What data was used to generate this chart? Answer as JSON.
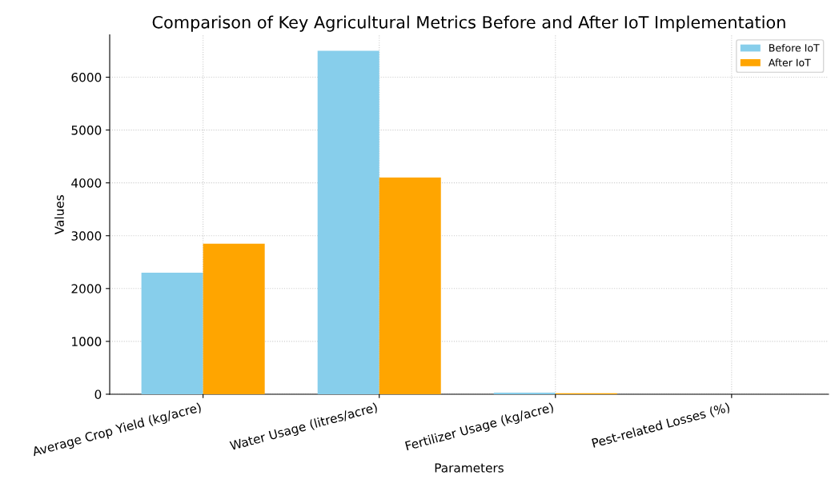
{
  "chart_data": {
    "type": "bar",
    "title": "Comparison of Key Agricultural Metrics Before and After IoT Implementation",
    "xlabel": "Parameters",
    "ylabel": "Values",
    "categories": [
      "Average Crop Yield (kg/acre)",
      "Water Usage (litres/acre)",
      "Fertilizer Usage (kg/acre)",
      "Pest-related Losses (%)"
    ],
    "series": [
      {
        "name": "Before IoT",
        "color": "#87ceeb",
        "values": [
          2300,
          6500,
          30,
          null
        ]
      },
      {
        "name": "After IoT",
        "color": "#ffa500",
        "values": [
          2850,
          4100,
          20,
          null
        ]
      }
    ],
    "ylim": [
      0,
      6800
    ],
    "yticks": [
      0,
      1000,
      2000,
      3000,
      4000,
      5000,
      6000
    ],
    "grid": true,
    "legend": "top right"
  }
}
